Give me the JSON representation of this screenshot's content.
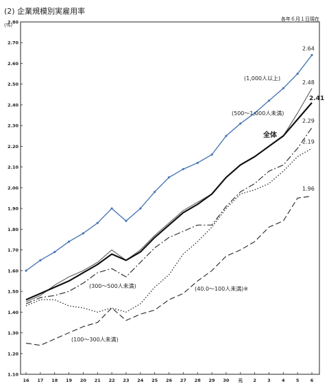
{
  "header": {
    "title": "(2) 企業規模別実雇用率",
    "note": "各年６月１日現在"
  },
  "chart_data": {
    "type": "line",
    "title": "(2) 企業規模別実雇用率",
    "ylabel": "(%)",
    "xlabel": "",
    "ylim": [
      1.1,
      2.8
    ],
    "ytick_step": 0.1,
    "categories": [
      "16",
      "17",
      "18",
      "19",
      "20",
      "21",
      "22",
      "23",
      "24",
      "25",
      "26",
      "27",
      "28",
      "29",
      "30",
      "元",
      "2",
      "3",
      "4",
      "5",
      "6"
    ],
    "grid": false,
    "series": [
      {
        "name": "(1,000人以上)",
        "color": "#4a79b5",
        "dash": "",
        "width": 1.4,
        "marker": true,
        "values": [
          1.6,
          1.65,
          1.69,
          1.74,
          1.78,
          1.83,
          1.9,
          1.84,
          1.9,
          1.98,
          2.05,
          2.09,
          2.12,
          2.16,
          2.25,
          2.31,
          2.36,
          2.42,
          2.48,
          2.55,
          2.64
        ],
        "end_label": "2.64"
      },
      {
        "name": "(500～1,000人未満)",
        "color": "#666666",
        "dash": "",
        "width": 1.2,
        "marker": false,
        "values": [
          1.45,
          1.48,
          1.53,
          1.57,
          1.6,
          1.64,
          1.7,
          1.65,
          1.7,
          1.77,
          1.83,
          1.89,
          1.93,
          1.97,
          2.05,
          2.11,
          2.15,
          2.2,
          2.25,
          2.36,
          2.48
        ],
        "end_label": "2.48"
      },
      {
        "name": "全体",
        "color": "#111111",
        "dash": "",
        "width": 2.2,
        "marker": false,
        "values": [
          1.46,
          1.49,
          1.52,
          1.55,
          1.59,
          1.63,
          1.68,
          1.65,
          1.69,
          1.76,
          1.82,
          1.88,
          1.92,
          1.97,
          2.05,
          2.11,
          2.15,
          2.2,
          2.25,
          2.33,
          2.41
        ],
        "end_label": "2.41"
      },
      {
        "name": "(300～500人未満)",
        "color": "#333333",
        "dash": "9,3,2,3",
        "width": 1.2,
        "marker": false,
        "values": [
          1.44,
          1.47,
          1.48,
          1.5,
          1.54,
          1.59,
          1.61,
          1.57,
          1.64,
          1.71,
          1.76,
          1.79,
          1.82,
          1.82,
          1.91,
          1.98,
          2.02,
          2.08,
          2.11,
          2.19,
          2.29
        ],
        "end_label": "2.29"
      },
      {
        "name": "(100～300人未満)",
        "color": "#333333",
        "dash": "8,4",
        "width": 1.2,
        "marker": false,
        "values": [
          1.25,
          1.24,
          1.27,
          1.3,
          1.33,
          1.35,
          1.42,
          1.36,
          1.39,
          1.41,
          1.46,
          1.49,
          1.55,
          1.6,
          1.67,
          1.7,
          1.74,
          1.81,
          1.84,
          1.95,
          1.96
        ],
        "end_label": "1.96"
      },
      {
        "name": "(40.0～100人未満)※",
        "color": "#333333",
        "dash": "1.5,2.5",
        "width": 1.4,
        "marker": false,
        "values": [
          1.43,
          1.46,
          1.46,
          1.43,
          1.42,
          1.4,
          1.42,
          1.4,
          1.44,
          1.52,
          1.58,
          1.68,
          1.74,
          1.81,
          1.9,
          1.97,
          1.99,
          2.02,
          2.08,
          2.15,
          2.19
        ],
        "end_label": "2.19"
      }
    ],
    "annotations": [
      {
        "series": 0,
        "text": "(1,000人以上)"
      },
      {
        "series": 1,
        "text": "(500～1,000人未満)"
      },
      {
        "series": 2,
        "text": "全体"
      },
      {
        "series": 3,
        "text": "(300～500人未満)"
      },
      {
        "series": 4,
        "text": "(100～300人未満)"
      },
      {
        "series": 5,
        "text": "(40.0～100人未満)※"
      }
    ]
  }
}
